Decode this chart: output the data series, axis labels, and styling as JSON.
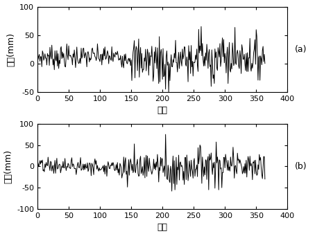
{
  "n_points": 365,
  "xlim": [
    0,
    400
  ],
  "xticks": [
    0,
    50,
    100,
    150,
    200,
    250,
    300,
    350,
    400
  ],
  "ylim_a": [
    -50,
    100
  ],
  "yticks_a": [
    -50,
    0,
    50,
    100
  ],
  "ylim_b": [
    -100,
    100
  ],
  "yticks_b": [
    -100,
    -50,
    0,
    50,
    100
  ],
  "xlabel": "天数",
  "ylabel": "残差(mm)",
  "label_a": "(a)",
  "label_b": "(b)",
  "line_color": "#000000",
  "line_width": 0.7,
  "bg_color": "#ffffff",
  "xlabel_fontsize": 9,
  "ylabel_fontsize": 9,
  "tick_fontsize": 8,
  "label_fontsize": 9,
  "mean_a": 12,
  "std_a_early": 10,
  "std_a_mid": 20,
  "std_a_late": 18,
  "mean_b": 0,
  "std_b_early": 10,
  "std_b_mid": 22,
  "std_b_late": 18
}
